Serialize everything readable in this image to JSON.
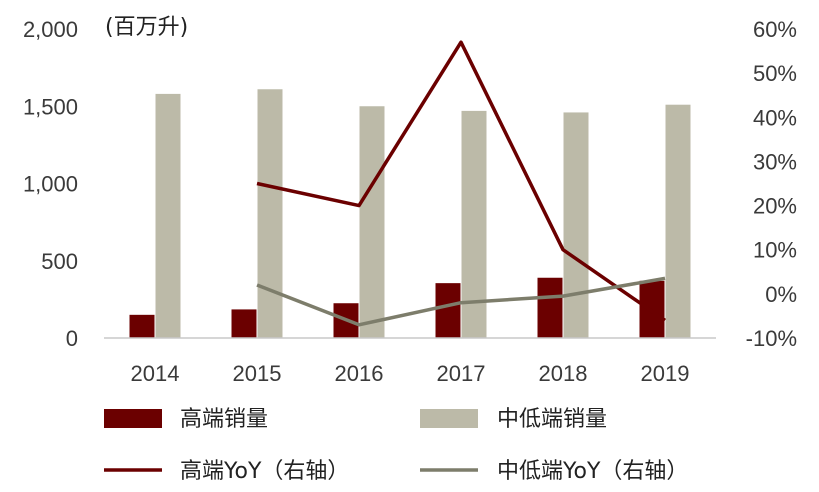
{
  "chart_data": {
    "type": "bar",
    "categories": [
      "2014",
      "2015",
      "2016",
      "2017",
      "2018",
      "2019"
    ],
    "unit_label": "(百万升)",
    "y_left": {
      "min": 0,
      "max": 2000,
      "ticks": [
        "0",
        "500",
        "1,000",
        "1,500",
        "2,000"
      ],
      "tick_values": [
        0,
        500,
        1000,
        1500,
        2000
      ]
    },
    "y_right": {
      "min": -10,
      "max": 60,
      "ticks": [
        "-10%",
        "0%",
        "10%",
        "20%",
        "30%",
        "40%",
        "50%",
        "60%"
      ],
      "tick_values": [
        -10,
        0,
        10,
        20,
        30,
        40,
        50,
        60
      ]
    },
    "series": [
      {
        "name": "高端销量",
        "kind": "bar",
        "axis": "left",
        "color": "#6b0000",
        "values": [
          150,
          185,
          225,
          355,
          390,
          370
        ]
      },
      {
        "name": "中低端销量",
        "kind": "bar",
        "axis": "left",
        "color": "#bcbaa8",
        "values": [
          1580,
          1610,
          1500,
          1470,
          1460,
          1510
        ]
      },
      {
        "name": "高端YoY（右轴）",
        "kind": "line",
        "axis": "right",
        "color": "#6b0000",
        "values": [
          null,
          25,
          20,
          57,
          10,
          -6
        ]
      },
      {
        "name": "中低端YoY（右轴）",
        "kind": "line",
        "axis": "right",
        "color": "#7d7d6b",
        "values": [
          null,
          2,
          -7,
          -2,
          -0.5,
          3.5
        ]
      }
    ],
    "grid": false,
    "legend_position": "bottom"
  }
}
